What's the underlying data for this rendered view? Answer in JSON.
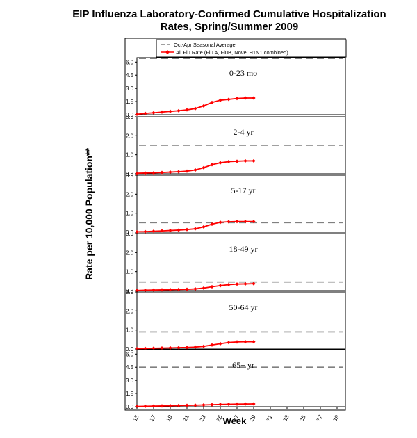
{
  "chart_data": {
    "type": "line",
    "title_lines": [
      "EIP Influenza Laboratory-Confirmed Cumulative Hospitalization",
      "Rates, Spring/Summer 2009"
    ],
    "xlabel": "Week",
    "ylabel": "Rate per 10,000 Population**",
    "legend": {
      "position": "top",
      "entries": [
        {
          "label": "Oct-Apr Seasonal Average'",
          "style": "dashed",
          "color": "#808080"
        },
        {
          "label": "All Flu Rate (Flu A, FluB, Novel H1N1 combined)",
          "style": "line-marker",
          "color": "#ff0000"
        }
      ]
    },
    "x_ticks": [
      "15",
      "17",
      "19",
      "21",
      "23",
      "25",
      "27",
      "29",
      "31",
      "33",
      "35",
      "37",
      "39"
    ],
    "x_range": [
      15,
      40
    ],
    "weeks": [
      15,
      16,
      17,
      18,
      19,
      20,
      21,
      22,
      23,
      24,
      25,
      26,
      27,
      28,
      29
    ],
    "panels": [
      {
        "name": "0-23 mo",
        "ylim": [
          0,
          6.5
        ],
        "ticks": [
          "0.0",
          "1.5",
          "3.0",
          "4.5",
          "6.0"
        ],
        "tick_values": [
          0,
          1.5,
          3,
          4.5,
          6
        ],
        "seasonal_average": 6.4,
        "values": [
          0.05,
          0.15,
          0.22,
          0.3,
          0.38,
          0.45,
          0.55,
          0.7,
          1.0,
          1.4,
          1.65,
          1.75,
          1.85,
          1.9,
          1.9
        ]
      },
      {
        "name": "2-4 yr",
        "ylim": [
          0,
          3
        ],
        "ticks": [
          "0.0",
          "1.0",
          "2.0",
          "3.0"
        ],
        "tick_values": [
          0,
          1,
          2,
          3
        ],
        "seasonal_average": 1.5,
        "values": [
          0.03,
          0.04,
          0.05,
          0.07,
          0.09,
          0.11,
          0.14,
          0.2,
          0.32,
          0.48,
          0.58,
          0.64,
          0.66,
          0.68,
          0.68
        ]
      },
      {
        "name": "5-17 yr",
        "ylim": [
          0,
          3
        ],
        "ticks": [
          "0.0",
          "1.0",
          "2.0",
          "3.0"
        ],
        "tick_values": [
          0,
          1,
          2,
          3
        ],
        "seasonal_average": 0.5,
        "values": [
          0.02,
          0.03,
          0.05,
          0.07,
          0.09,
          0.11,
          0.14,
          0.18,
          0.28,
          0.42,
          0.52,
          0.55,
          0.56,
          0.56,
          0.56
        ]
      },
      {
        "name": "18-49 yr",
        "ylim": [
          0,
          3
        ],
        "ticks": [
          "0.0",
          "1.0",
          "2.0",
          "3.0"
        ],
        "tick_values": [
          0,
          1,
          2,
          3
        ],
        "seasonal_average": 0.45,
        "values": [
          0.01,
          0.02,
          0.03,
          0.04,
          0.05,
          0.06,
          0.07,
          0.09,
          0.13,
          0.2,
          0.26,
          0.31,
          0.34,
          0.35,
          0.36
        ]
      },
      {
        "name": "50-64 yr",
        "ylim": [
          0,
          3
        ],
        "ticks": [
          "0.0",
          "1.0",
          "2.0",
          "3.0"
        ],
        "tick_values": [
          0,
          1,
          2,
          3
        ],
        "seasonal_average": 0.9,
        "values": [
          0.02,
          0.03,
          0.04,
          0.05,
          0.06,
          0.07,
          0.08,
          0.1,
          0.14,
          0.21,
          0.28,
          0.34,
          0.37,
          0.38,
          0.38
        ]
      },
      {
        "name": "65+ yr",
        "ylim": [
          0,
          6.5
        ],
        "ticks": [
          "0.0",
          "1.5",
          "3.0",
          "4.5",
          "6.0"
        ],
        "tick_values": [
          0,
          1.5,
          3,
          4.5,
          6
        ],
        "seasonal_average": 4.5,
        "values": [
          0.03,
          0.05,
          0.07,
          0.09,
          0.11,
          0.13,
          0.15,
          0.17,
          0.2,
          0.23,
          0.26,
          0.28,
          0.3,
          0.31,
          0.32
        ]
      }
    ]
  }
}
